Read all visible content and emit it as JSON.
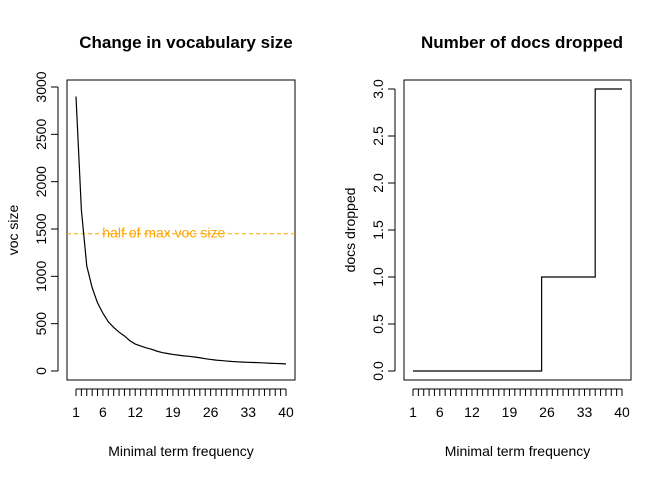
{
  "chart_data": [
    {
      "type": "line",
      "title": "Change in vocabulary size",
      "xlabel": "Minimal term frequency",
      "ylabel": "voc size",
      "xlim": [
        1,
        40
      ],
      "ylim": [
        0,
        3000
      ],
      "x_tick_labels": [
        "1",
        "6",
        "12",
        "19",
        "26",
        "33",
        "40"
      ],
      "x_tick_values": [
        1,
        6,
        12,
        19,
        26,
        33,
        40
      ],
      "y_tick_labels": [
        "0",
        "500",
        "1000",
        "1500",
        "2000",
        "2500",
        "3000"
      ],
      "y_tick_values": [
        0,
        500,
        1000,
        1500,
        2000,
        2500,
        3000
      ],
      "x": [
        1,
        2,
        3,
        4,
        5,
        6,
        7,
        8,
        9,
        10,
        11,
        12,
        13,
        14,
        15,
        16,
        17,
        18,
        19,
        20,
        21,
        22,
        23,
        24,
        25,
        26,
        27,
        28,
        29,
        30,
        31,
        32,
        33,
        34,
        35,
        36,
        37,
        38,
        39,
        40
      ],
      "values": [
        2900,
        1700,
        1110,
        880,
        720,
        610,
        520,
        460,
        410,
        370,
        320,
        285,
        265,
        245,
        230,
        210,
        195,
        185,
        175,
        168,
        160,
        155,
        148,
        140,
        130,
        122,
        115,
        110,
        105,
        100,
        97,
        94,
        92,
        90,
        88,
        85,
        82,
        80,
        78,
        75
      ],
      "reference_line": {
        "y": 1450,
        "label": "half of max voc size",
        "color": "#FFA500",
        "style": "dashed"
      },
      "line_color": "#000000"
    },
    {
      "type": "line",
      "title": "Number of docs dropped",
      "xlabel": "Minimal term frequency",
      "ylabel": "docs dropped",
      "xlim": [
        1,
        40
      ],
      "ylim": [
        0,
        3
      ],
      "x_tick_labels": [
        "1",
        "6",
        "12",
        "19",
        "26",
        "33",
        "40"
      ],
      "x_tick_values": [
        1,
        6,
        12,
        19,
        26,
        33,
        40
      ],
      "y_tick_labels": [
        "0.0",
        "0.5",
        "1.0",
        "1.5",
        "2.0",
        "2.5",
        "3.0"
      ],
      "y_tick_values": [
        0,
        0.5,
        1,
        1.5,
        2,
        2.5,
        3
      ],
      "x": [
        1,
        2,
        3,
        4,
        5,
        6,
        7,
        8,
        9,
        10,
        11,
        12,
        13,
        14,
        15,
        16,
        17,
        18,
        19,
        20,
        21,
        22,
        23,
        24,
        25,
        26,
        27,
        28,
        29,
        30,
        31,
        32,
        33,
        34,
        35,
        36,
        37,
        38,
        39,
        40
      ],
      "values": [
        0,
        0,
        0,
        0,
        0,
        0,
        0,
        0,
        0,
        0,
        0,
        0,
        0,
        0,
        0,
        0,
        0,
        0,
        0,
        0,
        0,
        0,
        0,
        0,
        1,
        1,
        1,
        1,
        1,
        1,
        1,
        1,
        1,
        1,
        3,
        3,
        3,
        3,
        3,
        3
      ],
      "line_color": "#000000"
    }
  ]
}
